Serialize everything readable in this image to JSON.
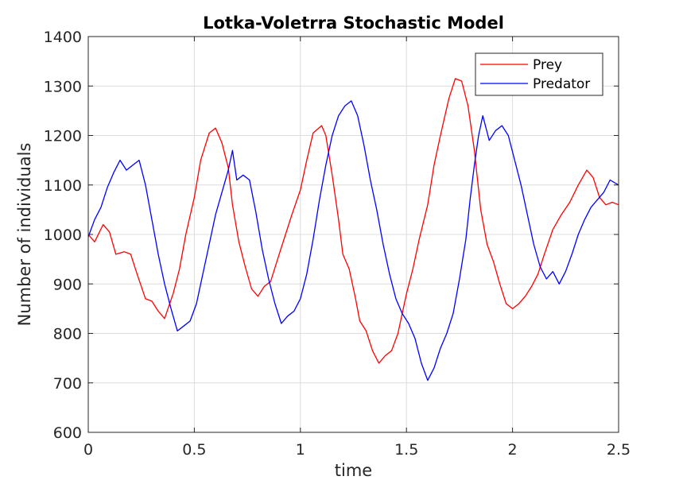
{
  "chart_data": {
    "type": "line",
    "title": "Lotka-Voletrra Stochastic Model",
    "xlabel": "time",
    "ylabel": "Number of individuals",
    "xlim": [
      0,
      2.5
    ],
    "ylim": [
      600,
      1400
    ],
    "xticks": [
      0,
      0.5,
      1,
      1.5,
      2,
      2.5
    ],
    "xtick_labels": [
      "0",
      "0.5",
      "1",
      "1.5",
      "2",
      "2.5"
    ],
    "yticks": [
      600,
      700,
      800,
      900,
      1000,
      1100,
      1200,
      1300,
      1400
    ],
    "ytick_labels": [
      "600",
      "700",
      "800",
      "900",
      "1000",
      "1100",
      "1200",
      "1300",
      "1400"
    ],
    "grid": true,
    "legend_position": "top-right",
    "series": [
      {
        "name": "Prey",
        "color": "#ff0000",
        "points": [
          [
            0,
            1000
          ],
          [
            0.03,
            985
          ],
          [
            0.07,
            1020
          ],
          [
            0.1,
            1005
          ],
          [
            0.13,
            960
          ],
          [
            0.17,
            965
          ],
          [
            0.2,
            960
          ],
          [
            0.23,
            920
          ],
          [
            0.27,
            870
          ],
          [
            0.3,
            865
          ],
          [
            0.33,
            845
          ],
          [
            0.36,
            830
          ],
          [
            0.4,
            880
          ],
          [
            0.43,
            930
          ],
          [
            0.46,
            1000
          ],
          [
            0.5,
            1075
          ],
          [
            0.53,
            1150
          ],
          [
            0.57,
            1205
          ],
          [
            0.6,
            1215
          ],
          [
            0.63,
            1185
          ],
          [
            0.66,
            1135
          ],
          [
            0.68,
            1060
          ],
          [
            0.71,
            985
          ],
          [
            0.74,
            935
          ],
          [
            0.77,
            890
          ],
          [
            0.8,
            875
          ],
          [
            0.83,
            895
          ],
          [
            0.86,
            905
          ],
          [
            0.9,
            960
          ],
          [
            0.93,
            1000
          ],
          [
            0.96,
            1040
          ],
          [
            1,
            1090
          ],
          [
            1.03,
            1150
          ],
          [
            1.06,
            1205
          ],
          [
            1.1,
            1220
          ],
          [
            1.12,
            1200
          ],
          [
            1.15,
            1120
          ],
          [
            1.18,
            1030
          ],
          [
            1.2,
            960
          ],
          [
            1.23,
            930
          ],
          [
            1.26,
            870
          ],
          [
            1.28,
            825
          ],
          [
            1.31,
            805
          ],
          [
            1.34,
            765
          ],
          [
            1.37,
            740
          ],
          [
            1.4,
            755
          ],
          [
            1.43,
            765
          ],
          [
            1.46,
            800
          ],
          [
            1.5,
            880
          ],
          [
            1.53,
            930
          ],
          [
            1.56,
            990
          ],
          [
            1.6,
            1060
          ],
          [
            1.63,
            1140
          ],
          [
            1.66,
            1200
          ],
          [
            1.7,
            1275
          ],
          [
            1.73,
            1315
          ],
          [
            1.76,
            1310
          ],
          [
            1.79,
            1260
          ],
          [
            1.82,
            1170
          ],
          [
            1.85,
            1050
          ],
          [
            1.88,
            980
          ],
          [
            1.91,
            945
          ],
          [
            1.94,
            900
          ],
          [
            1.97,
            860
          ],
          [
            2,
            850
          ],
          [
            2.03,
            860
          ],
          [
            2.06,
            875
          ],
          [
            2.09,
            895
          ],
          [
            2.12,
            920
          ],
          [
            2.15,
            960
          ],
          [
            2.19,
            1010
          ],
          [
            2.23,
            1040
          ],
          [
            2.27,
            1065
          ],
          [
            2.31,
            1100
          ],
          [
            2.35,
            1130
          ],
          [
            2.38,
            1115
          ],
          [
            2.41,
            1075
          ],
          [
            2.44,
            1060
          ],
          [
            2.47,
            1065
          ],
          [
            2.5,
            1060
          ]
        ]
      },
      {
        "name": "Predator",
        "color": "#0000ff",
        "points": [
          [
            0,
            995
          ],
          [
            0.03,
            1030
          ],
          [
            0.06,
            1055
          ],
          [
            0.09,
            1095
          ],
          [
            0.12,
            1125
          ],
          [
            0.15,
            1150
          ],
          [
            0.18,
            1130
          ],
          [
            0.21,
            1140
          ],
          [
            0.24,
            1150
          ],
          [
            0.27,
            1100
          ],
          [
            0.3,
            1030
          ],
          [
            0.33,
            960
          ],
          [
            0.36,
            900
          ],
          [
            0.39,
            850
          ],
          [
            0.42,
            805
          ],
          [
            0.45,
            815
          ],
          [
            0.48,
            825
          ],
          [
            0.51,
            860
          ],
          [
            0.54,
            920
          ],
          [
            0.57,
            980
          ],
          [
            0.6,
            1040
          ],
          [
            0.63,
            1085
          ],
          [
            0.66,
            1130
          ],
          [
            0.68,
            1170
          ],
          [
            0.7,
            1110
          ],
          [
            0.73,
            1120
          ],
          [
            0.76,
            1110
          ],
          [
            0.79,
            1045
          ],
          [
            0.82,
            970
          ],
          [
            0.85,
            910
          ],
          [
            0.88,
            860
          ],
          [
            0.91,
            820
          ],
          [
            0.94,
            835
          ],
          [
            0.97,
            845
          ],
          [
            1,
            870
          ],
          [
            1.03,
            920
          ],
          [
            1.06,
            990
          ],
          [
            1.09,
            1070
          ],
          [
            1.12,
            1140
          ],
          [
            1.15,
            1200
          ],
          [
            1.18,
            1240
          ],
          [
            1.21,
            1260
          ],
          [
            1.24,
            1270
          ],
          [
            1.27,
            1240
          ],
          [
            1.3,
            1180
          ],
          [
            1.33,
            1110
          ],
          [
            1.36,
            1050
          ],
          [
            1.39,
            980
          ],
          [
            1.42,
            920
          ],
          [
            1.45,
            870
          ],
          [
            1.48,
            840
          ],
          [
            1.51,
            820
          ],
          [
            1.54,
            790
          ],
          [
            1.57,
            740
          ],
          [
            1.6,
            705
          ],
          [
            1.63,
            730
          ],
          [
            1.66,
            770
          ],
          [
            1.69,
            800
          ],
          [
            1.72,
            840
          ],
          [
            1.75,
            910
          ],
          [
            1.78,
            990
          ],
          [
            1.8,
            1070
          ],
          [
            1.82,
            1140
          ],
          [
            1.84,
            1200
          ],
          [
            1.86,
            1240
          ],
          [
            1.89,
            1190
          ],
          [
            1.92,
            1210
          ],
          [
            1.95,
            1220
          ],
          [
            1.98,
            1200
          ],
          [
            2.01,
            1150
          ],
          [
            2.04,
            1100
          ],
          [
            2.07,
            1040
          ],
          [
            2.1,
            980
          ],
          [
            2.13,
            935
          ],
          [
            2.16,
            910
          ],
          [
            2.19,
            925
          ],
          [
            2.22,
            900
          ],
          [
            2.25,
            925
          ],
          [
            2.28,
            960
          ],
          [
            2.31,
            1000
          ],
          [
            2.34,
            1030
          ],
          [
            2.37,
            1055
          ],
          [
            2.4,
            1070
          ],
          [
            2.43,
            1085
          ],
          [
            2.46,
            1110
          ],
          [
            2.5,
            1100
          ]
        ]
      }
    ]
  }
}
